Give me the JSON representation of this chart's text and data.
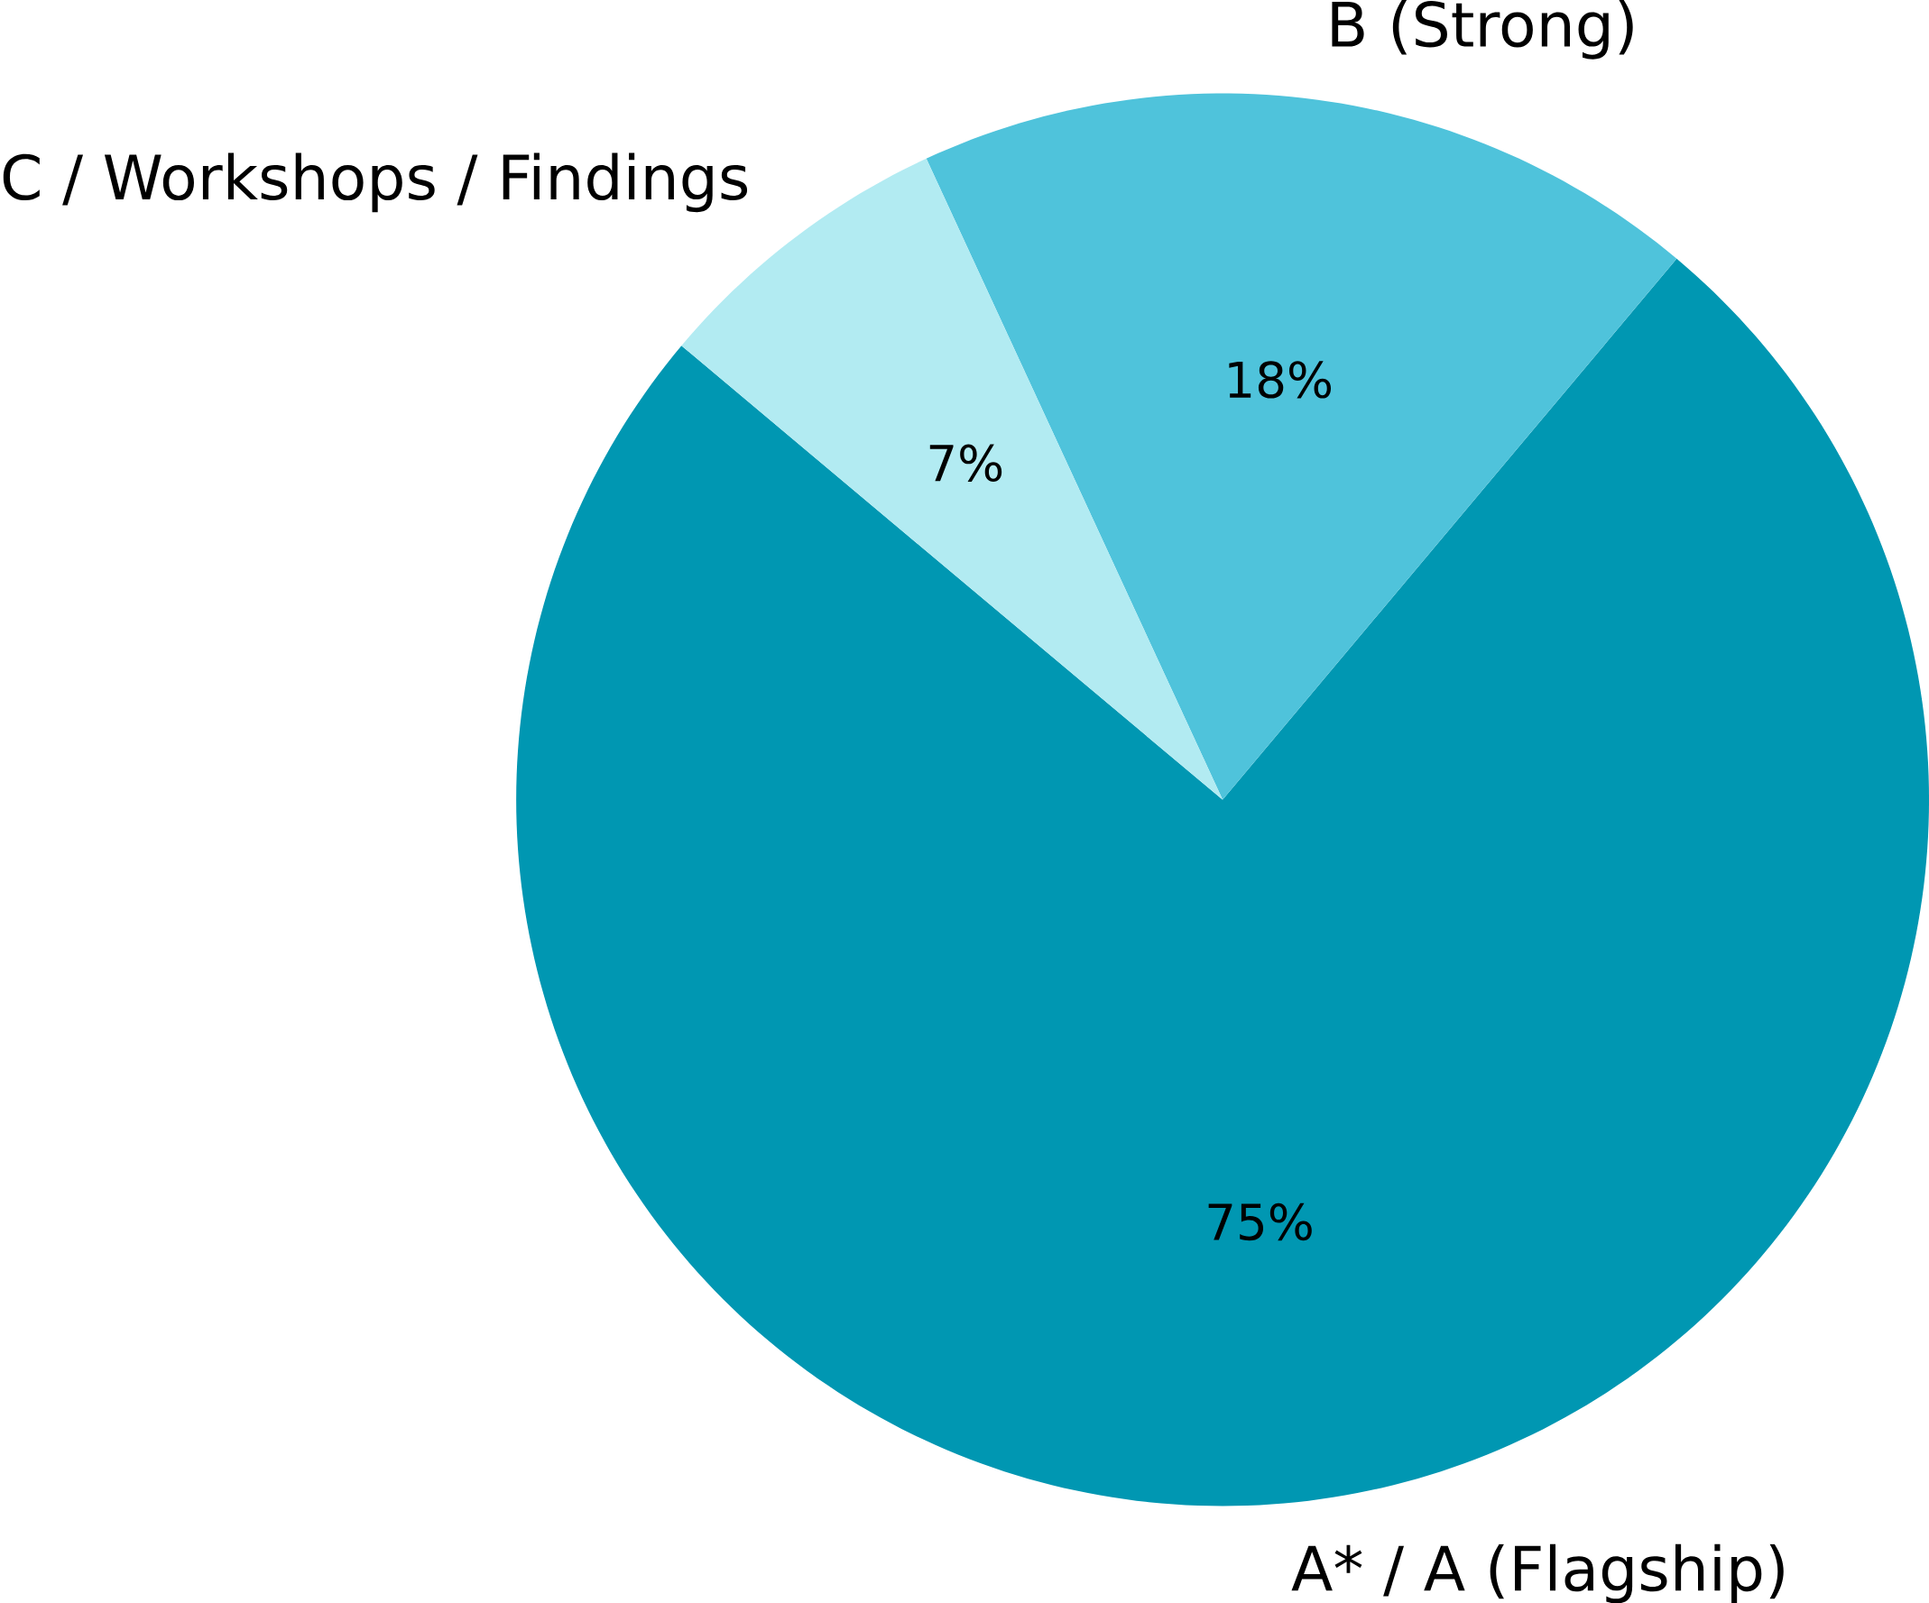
{
  "chart_data": {
    "type": "pie",
    "categories": [
      "A* / A (Flagship)",
      "B (Strong)",
      "C / Workshops / Findings"
    ],
    "values": [
      75,
      18,
      7
    ],
    "colors": [
      "#0097b2",
      "#4fc3db",
      "#b2ebf2"
    ],
    "value_labels": [
      "75%",
      "18%",
      "7%"
    ]
  }
}
